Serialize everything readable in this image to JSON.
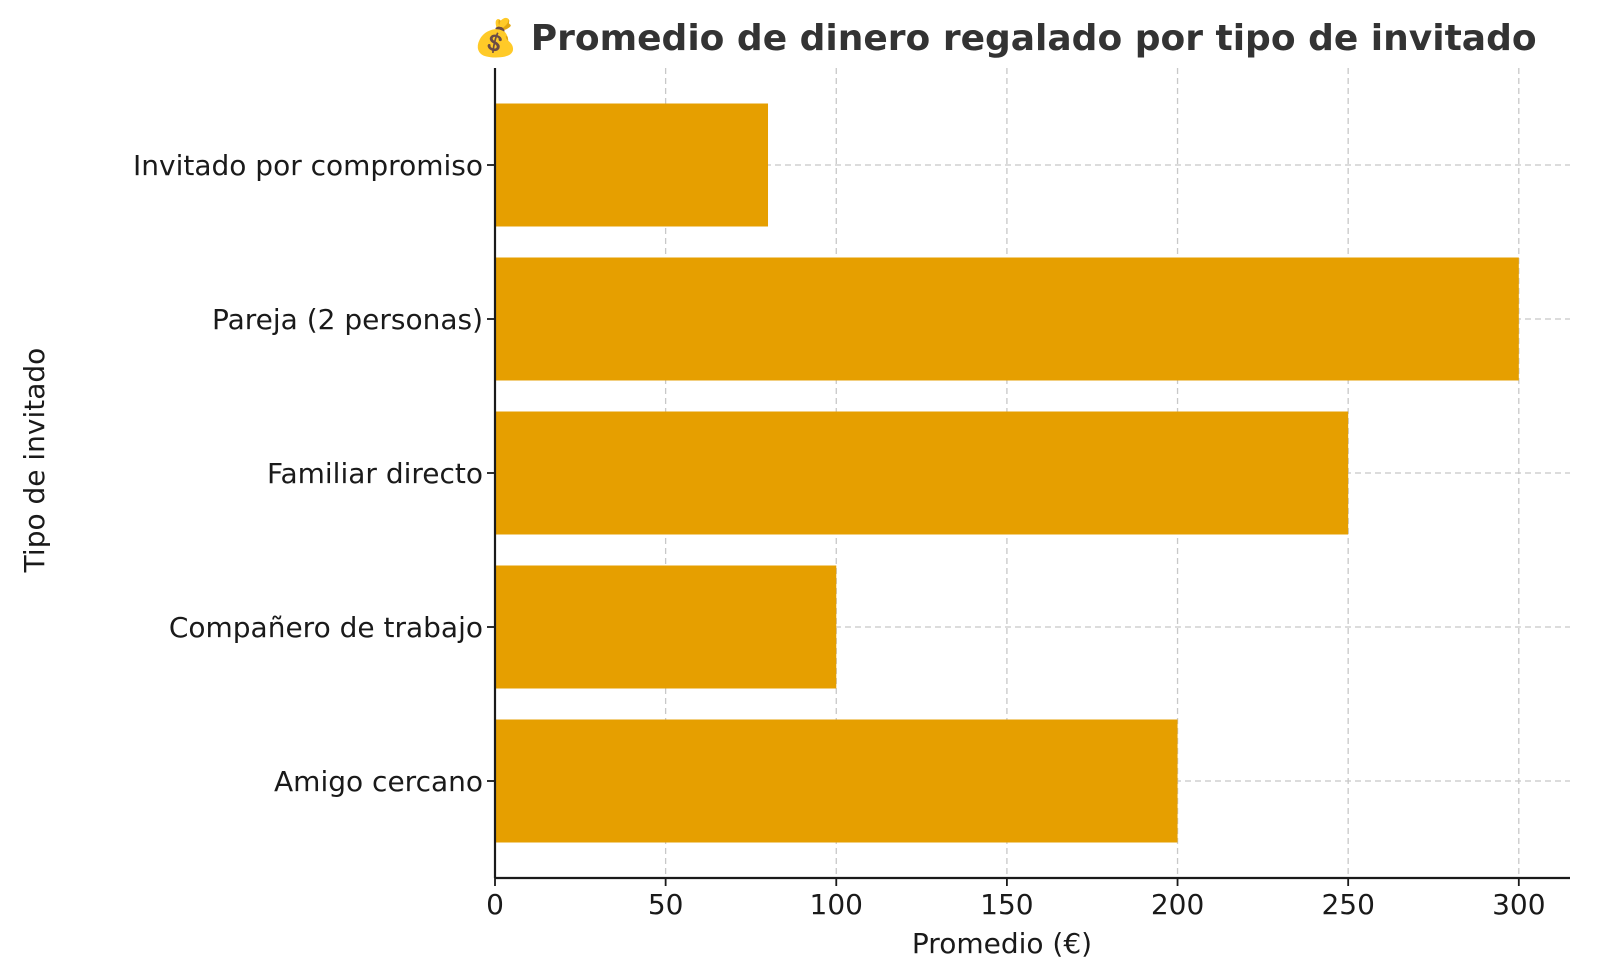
{
  "chart_data": {
    "type": "bar",
    "orientation": "horizontal",
    "title": "💰 Promedio de dinero regalado por tipo de invitado",
    "xlabel": "Promedio (€)",
    "ylabel": "Tipo de invitado",
    "categories": [
      "Amigo cercano",
      "Compañero de trabajo",
      "Familiar directo",
      "Pareja (2 personas)",
      "Invitado por compromiso"
    ],
    "values": [
      200,
      100,
      250,
      300,
      80
    ],
    "xlim": [
      0,
      315
    ],
    "xticks": [
      0,
      50,
      100,
      150,
      200,
      250,
      300
    ],
    "grid": true,
    "bar_color": "#E69F00"
  }
}
